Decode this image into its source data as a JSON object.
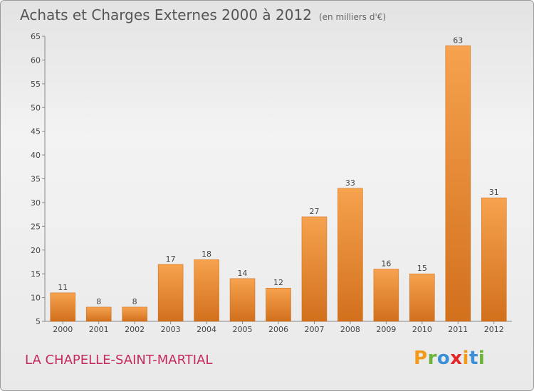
{
  "title": "Achats et Charges Externes 2000 à 2012",
  "subtitle": "(en milliers d'€)",
  "commune": "LA CHAPELLE-SAINT-MARTIAL",
  "logo": {
    "letters": [
      "P",
      "r",
      "o",
      "x",
      "i",
      "t",
      "i"
    ],
    "colors": [
      "#f29a1a",
      "#6bb33a",
      "#3a8fd6",
      "#e3262a",
      "#f29a1a",
      "#3a8fd6",
      "#6bb33a"
    ]
  },
  "chart_data": {
    "type": "bar",
    "categories": [
      "2000",
      "2001",
      "2002",
      "2003",
      "2004",
      "2005",
      "2006",
      "2007",
      "2008",
      "2009",
      "2010",
      "2011",
      "2012"
    ],
    "values": [
      11,
      8,
      8,
      17,
      18,
      14,
      12,
      27,
      33,
      16,
      15,
      63,
      31
    ],
    "ylim": [
      5,
      65
    ],
    "yticks": [
      5,
      10,
      15,
      20,
      25,
      30,
      35,
      40,
      45,
      50,
      55,
      60,
      65
    ],
    "grid": false,
    "bar_color": "#e8862c"
  }
}
